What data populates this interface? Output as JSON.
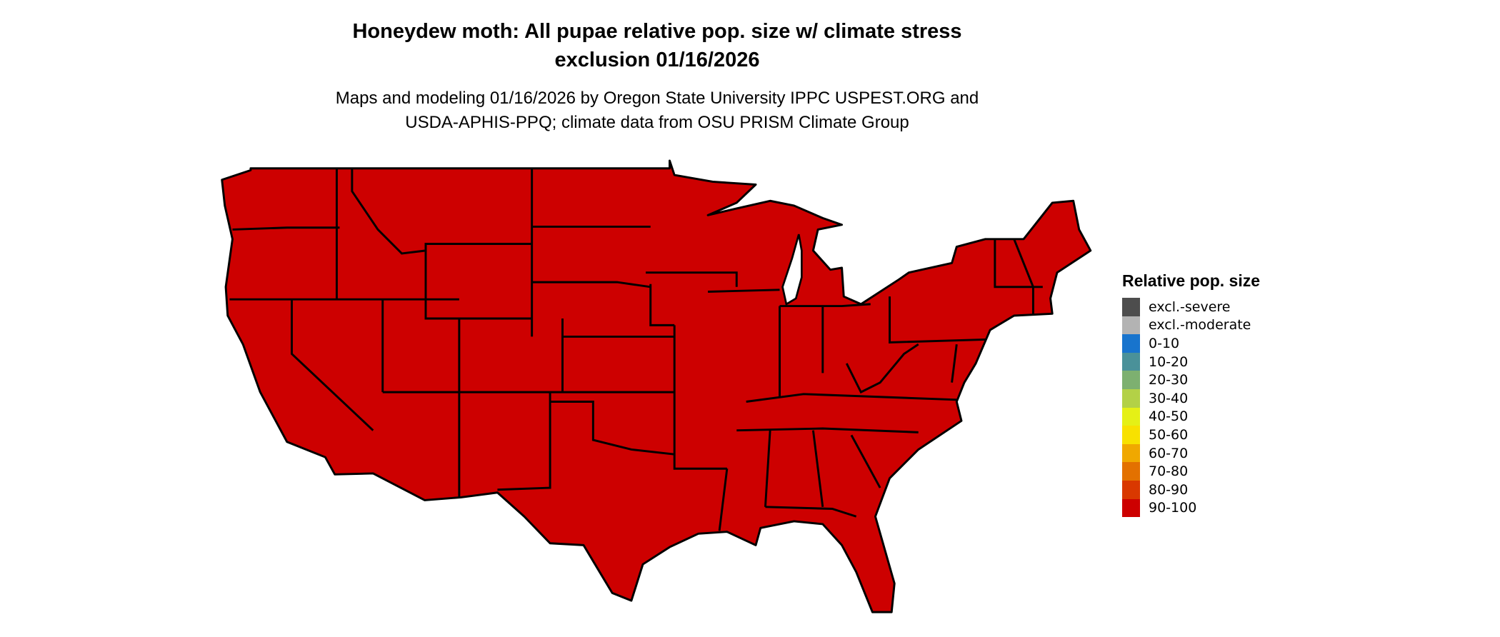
{
  "title": {
    "line1": "Honeydew moth: All pupae relative pop. size w/ climate stress",
    "line2": "exclusion 01/16/2026"
  },
  "subtitle": {
    "line1": "Maps and modeling 01/16/2026 by Oregon State University IPPC USPEST.ORG and",
    "line2": "USDA-APHIS-PPQ; climate data from OSU PRISM Climate Group"
  },
  "map": {
    "region": "Contiguous United States",
    "fill_color": "#cd0000",
    "fill_class": "90-100",
    "border_color": "#000000"
  },
  "legend": {
    "title": "Relative pop. size",
    "items": [
      {
        "label": "excl.-severe",
        "color": "#4d4d4d"
      },
      {
        "label": "excl.-moderate",
        "color": "#b3b3b3"
      },
      {
        "label": "0-10",
        "color": "#1874cd"
      },
      {
        "label": "10-20",
        "color": "#4a9199"
      },
      {
        "label": "20-30",
        "color": "#7db070"
      },
      {
        "label": "30-40",
        "color": "#b3d147"
      },
      {
        "label": "40-50",
        "color": "#e5f016"
      },
      {
        "label": "50-60",
        "color": "#f8e100"
      },
      {
        "label": "60-70",
        "color": "#f0a800"
      },
      {
        "label": "70-80",
        "color": "#e37100"
      },
      {
        "label": "80-90",
        "color": "#d93800"
      },
      {
        "label": "90-100",
        "color": "#cd0000"
      }
    ]
  }
}
